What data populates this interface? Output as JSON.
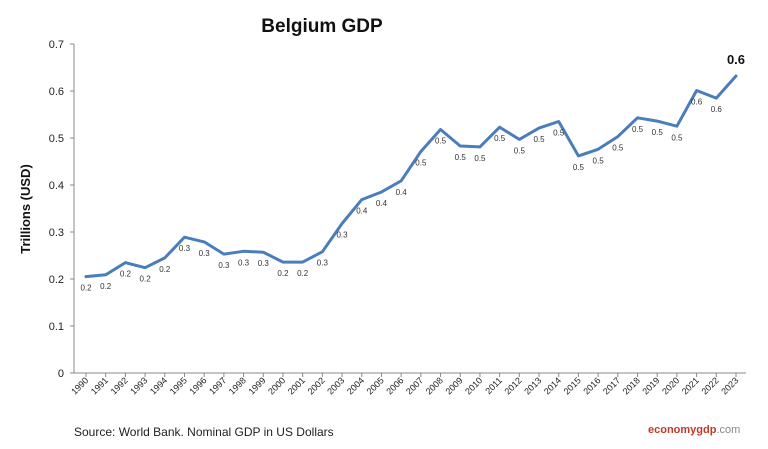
{
  "chart_data": {
    "type": "line",
    "title": "Belgium GDP",
    "ylabel": "Trillions (USD)",
    "xlabel": "",
    "ylim": [
      0,
      0.7
    ],
    "yticks": [
      "0",
      "0.1",
      "0.2",
      "0.3",
      "0.4",
      "0.5",
      "0.6",
      "0.7"
    ],
    "grid": false,
    "categories": [
      "1990",
      "1991",
      "1992",
      "1993",
      "1994",
      "1995",
      "1996",
      "1997",
      "1998",
      "1999",
      "2000",
      "2001",
      "2002",
      "2003",
      "2004",
      "2005",
      "2006",
      "2007",
      "2008",
      "2009",
      "2010",
      "2011",
      "2012",
      "2013",
      "2014",
      "2015",
      "2016",
      "2017",
      "2018",
      "2019",
      "2020",
      "2021",
      "2022",
      "2023"
    ],
    "values": [
      0.205,
      0.209,
      0.235,
      0.224,
      0.245,
      0.289,
      0.279,
      0.253,
      0.259,
      0.257,
      0.236,
      0.236,
      0.258,
      0.318,
      0.369,
      0.385,
      0.409,
      0.471,
      0.518,
      0.483,
      0.481,
      0.523,
      0.497,
      0.521,
      0.535,
      0.462,
      0.476,
      0.503,
      0.543,
      0.536,
      0.525,
      0.601,
      0.585,
      0.632
    ],
    "data_labels": [
      "0.2",
      "0.2",
      "0.2",
      "0.2",
      "0.2",
      "0.3",
      "0.3",
      "0.3",
      "0.3",
      "0.3",
      "0.2",
      "0.2",
      "0.3",
      "0.3",
      "0.4",
      "0.4",
      "0.4",
      "0.5",
      "0.5",
      "0.5",
      "0.5",
      "0.5",
      "0.5",
      "0.5",
      "0.5",
      "0.5",
      "0.5",
      "0.5",
      "0.5",
      "0.5",
      "0.5",
      "0.6",
      "0.6",
      "0.6"
    ],
    "line_color": "#4a7ebb"
  },
  "footer": {
    "source": "Source: World Bank.  Nominal GDP in US Dollars",
    "brand_part1": "economy",
    "brand_part2": "gdp",
    "brand_part3": ".com"
  }
}
